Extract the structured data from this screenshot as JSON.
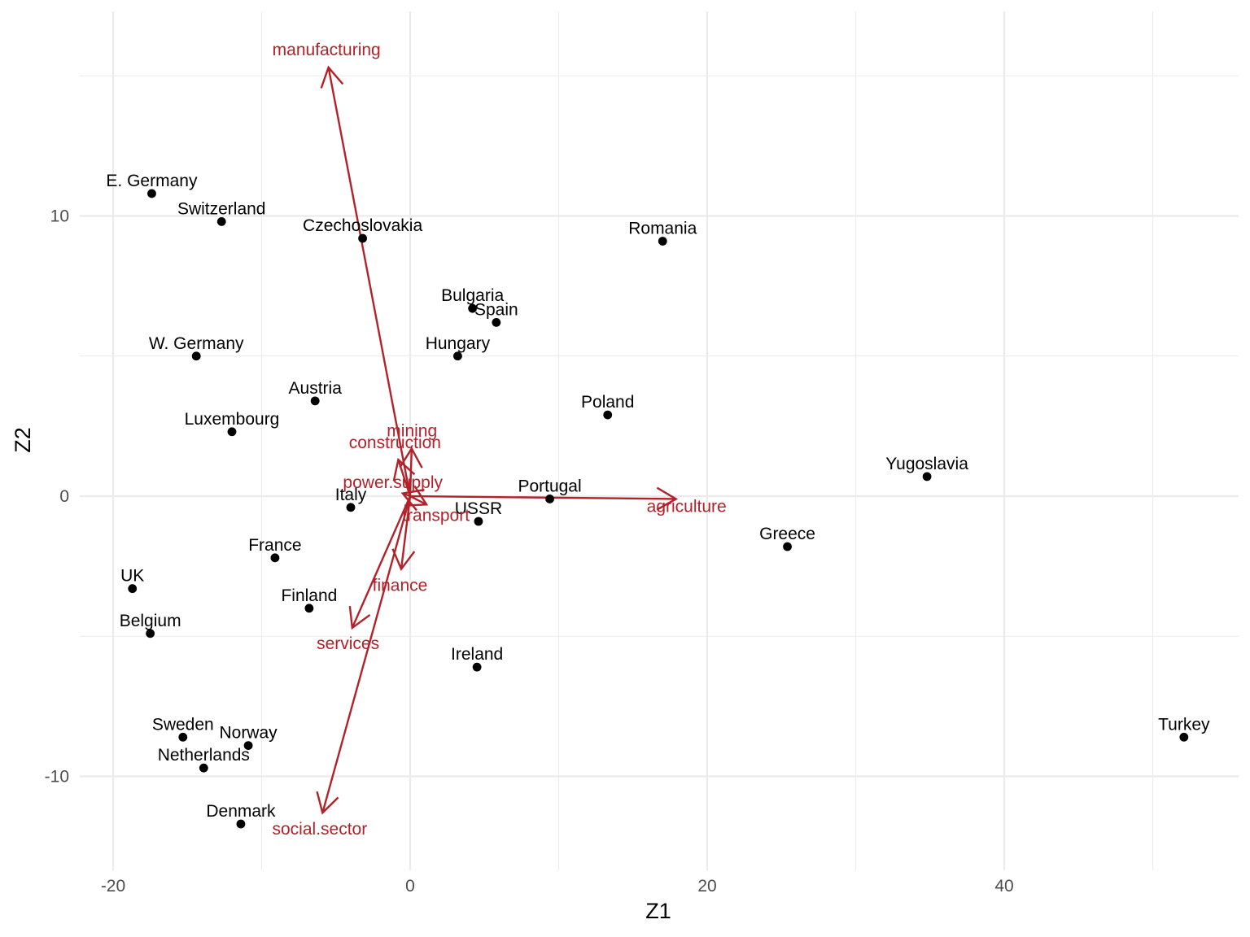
{
  "chart_data": {
    "type": "scatter",
    "title": "",
    "xlabel": "Z1",
    "ylabel": "Z2",
    "xlim": [
      -22,
      56
    ],
    "ylim": [
      -13.3,
      17.3
    ],
    "x_ticks": [
      -20,
      0,
      20,
      40
    ],
    "y_ticks": [
      -10,
      0,
      10
    ],
    "grid": true,
    "legend": "none",
    "points": [
      {
        "label": "E. Germany",
        "x": -17.4,
        "y": 10.8
      },
      {
        "label": "Switzerland",
        "x": -12.7,
        "y": 9.8
      },
      {
        "label": "Czechoslovakia",
        "x": -3.2,
        "y": 9.2
      },
      {
        "label": "Romania",
        "x": 17.0,
        "y": 9.1
      },
      {
        "label": "Bulgaria",
        "x": 4.2,
        "y": 6.7
      },
      {
        "label": "Spain",
        "x": 5.8,
        "y": 6.2
      },
      {
        "label": "W. Germany",
        "x": -14.4,
        "y": 5.0
      },
      {
        "label": "Hungary",
        "x": 3.2,
        "y": 5.0
      },
      {
        "label": "Austria",
        "x": -6.4,
        "y": 3.4
      },
      {
        "label": "Poland",
        "x": 13.3,
        "y": 2.9
      },
      {
        "label": "Luxembourg",
        "x": -12.0,
        "y": 2.3
      },
      {
        "label": "Yugoslavia",
        "x": 34.8,
        "y": 0.7
      },
      {
        "label": "Portugal",
        "x": 9.4,
        "y": -0.1
      },
      {
        "label": "Italy",
        "x": -4.0,
        "y": -0.4
      },
      {
        "label": "USSR",
        "x": 4.6,
        "y": -0.9
      },
      {
        "label": "France",
        "x": -9.1,
        "y": -2.2
      },
      {
        "label": "Greece",
        "x": 25.4,
        "y": -1.8
      },
      {
        "label": "UK",
        "x": -18.7,
        "y": -3.3
      },
      {
        "label": "Finland",
        "x": -6.8,
        "y": -4.0
      },
      {
        "label": "Belgium",
        "x": -17.5,
        "y": -4.9
      },
      {
        "label": "Ireland",
        "x": 4.5,
        "y": -6.1
      },
      {
        "label": "Sweden",
        "x": -15.3,
        "y": -8.6
      },
      {
        "label": "Norway",
        "x": -10.9,
        "y": -8.9
      },
      {
        "label": "Netherlands",
        "x": -13.9,
        "y": -9.7
      },
      {
        "label": "Turkey",
        "x": 52.1,
        "y": -8.6
      },
      {
        "label": "Denmark",
        "x": -11.4,
        "y": -11.7
      }
    ],
    "loadings": [
      {
        "name": "manufacturing",
        "x": -5.5,
        "y": 15.3
      },
      {
        "name": "agriculture",
        "x": 17.9,
        "y": -0.1
      },
      {
        "name": "social.sector",
        "x": -5.9,
        "y": -11.3
      },
      {
        "name": "services",
        "x": -3.9,
        "y": -4.7
      },
      {
        "name": "finance",
        "x": -0.6,
        "y": -2.6
      },
      {
        "name": "mining",
        "x": 0.1,
        "y": 1.7
      },
      {
        "name": "construction",
        "x": -0.8,
        "y": 1.3
      },
      {
        "name": "power.supply",
        "x": -0.5,
        "y": 0.1
      },
      {
        "name": "transport",
        "x": 1.1,
        "y": -0.3
      }
    ],
    "colors": {
      "points": "#000000",
      "loadings": "#b2222a",
      "grid": "#ebebeb"
    }
  }
}
